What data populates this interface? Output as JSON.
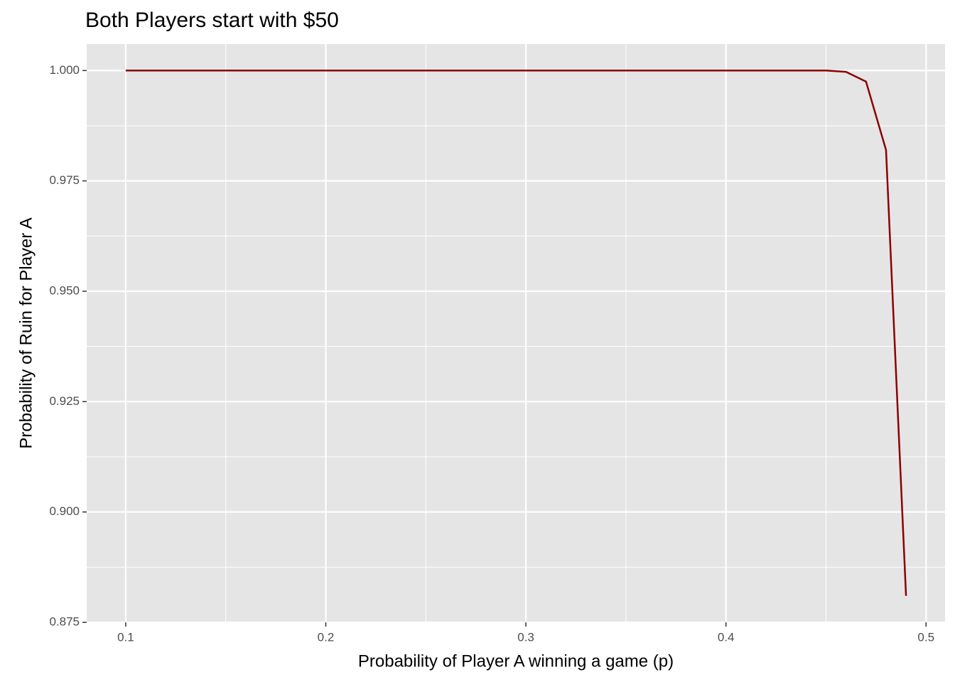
{
  "chart_data": {
    "type": "line",
    "title": "Both Players start with $50",
    "x_label": "Probability of Player A winning a game (p)",
    "y_label": "Probability of Ruin for Player A",
    "x": [
      0.1,
      0.11,
      0.12,
      0.13,
      0.14,
      0.15,
      0.16,
      0.17,
      0.18,
      0.19,
      0.2,
      0.21,
      0.22,
      0.23,
      0.24,
      0.25,
      0.26,
      0.27,
      0.28,
      0.29,
      0.3,
      0.31,
      0.32,
      0.33,
      0.34,
      0.35,
      0.36,
      0.37,
      0.38,
      0.39,
      0.4,
      0.41,
      0.42,
      0.43,
      0.44,
      0.45,
      0.46,
      0.47,
      0.48,
      0.49
    ],
    "series": [
      {
        "color": "#8b0000",
        "values": [
          1,
          1,
          1,
          1,
          1,
          1,
          1,
          1,
          1,
          1,
          1,
          1,
          1,
          1,
          1,
          1,
          1,
          1,
          1,
          1,
          1,
          1,
          1,
          1,
          1,
          1,
          1,
          1,
          1,
          1,
          1,
          1,
          1,
          1,
          1,
          1,
          0.9997,
          0.9975,
          0.982,
          0.881
        ]
      }
    ],
    "xlim": [
      0.0805,
      0.5095
    ],
    "xticks": [
      0.1,
      0.2,
      0.3,
      0.4,
      0.5
    ],
    "ylim": [
      0.875,
      1.006
    ],
    "yticks": [
      {
        "value": 0.875,
        "label": "0.875"
      },
      {
        "value": 0.9,
        "label": "0.900"
      },
      {
        "value": 0.925,
        "label": "0.925"
      },
      {
        "value": 0.95,
        "label": "0.950"
      },
      {
        "value": 0.975,
        "label": "0.975"
      },
      {
        "value": 1,
        "label": "1.000"
      }
    ],
    "grid": true
  }
}
